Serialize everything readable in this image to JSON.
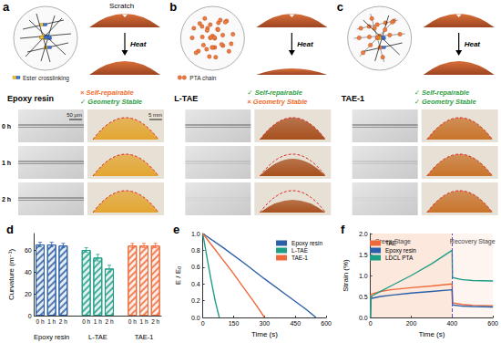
{
  "panels": [
    {
      "letter": "a",
      "name": "Epoxy resin",
      "scratch_label": "Scratch",
      "heat_label": "Heat",
      "key_label": "Ester crosslinking",
      "status": [
        {
          "text": "× Self-repairable",
          "ok": false
        },
        {
          "text": "✓ Geometry Stable",
          "ok": true
        }
      ],
      "times": [
        "0 h",
        "1 h",
        "2 h"
      ],
      "scale_bars": [
        "50 μm",
        "5 mm"
      ]
    },
    {
      "letter": "b",
      "name": "L-TAE",
      "heat_label": "Heat",
      "key_label": "PTA chain",
      "status": [
        {
          "text": "✓ Self-repairable",
          "ok": true
        },
        {
          "text": "× Geometry Stable",
          "ok": false
        }
      ]
    },
    {
      "letter": "c",
      "name": "TAE-1",
      "heat_label": "Heat",
      "status": [
        {
          "text": "✓ Self-repairable",
          "ok": true
        },
        {
          "text": "✓ Geometry Stable",
          "ok": true
        }
      ]
    }
  ],
  "chart_data": [
    {
      "panel": "d",
      "type": "bar",
      "ylabel": "Curvature (m⁻¹)",
      "categories": [
        "0 h",
        "1 h",
        "2 h"
      ],
      "series": [
        {
          "name": "Epoxy resin",
          "color": "#2b5fa8",
          "values": [
            65,
            65,
            64
          ],
          "errors": [
            2,
            2,
            2
          ]
        },
        {
          "name": "L-TAE",
          "color": "#1f9e86",
          "values": [
            60,
            53,
            43
          ],
          "errors": [
            2,
            3,
            3
          ]
        },
        {
          "name": "TAE-1",
          "color": "#ef6a3a",
          "values": [
            64,
            64,
            64
          ],
          "errors": [
            2,
            2,
            2
          ]
        }
      ],
      "ylim": [
        0,
        75
      ],
      "yticks": [
        0,
        20,
        40,
        60
      ]
    },
    {
      "panel": "e",
      "type": "line",
      "xlabel": "Time (s)",
      "ylabel": "E / E₀",
      "legend": "upper right",
      "xlim": [
        0,
        600
      ],
      "xticks": [
        0,
        150,
        300,
        450,
        600
      ],
      "ylim": [
        0,
        1
      ],
      "yticks": [
        {
          "value": 0,
          "label": "0.0"
        },
        0.2,
        0.4,
        0.6,
        0.8,
        {
          "value": 1,
          "label": "1.0"
        }
      ],
      "series": [
        {
          "name": "Epoxy resin",
          "color": "#2b5fa8",
          "x": [
            0,
            100,
            200,
            300,
            400,
            500,
            550
          ],
          "values": [
            1,
            0.83,
            0.65,
            0.46,
            0.28,
            0.1,
            0
          ]
        },
        {
          "name": "L-TAE",
          "color": "#1f9e86",
          "x": [
            0,
            20,
            40,
            60,
            80
          ],
          "values": [
            1,
            0.72,
            0.45,
            0.2,
            0
          ]
        },
        {
          "name": "TAE-1",
          "color": "#ef6a3a",
          "x": [
            0,
            50,
            100,
            150,
            200,
            250,
            300
          ],
          "values": [
            1,
            0.84,
            0.68,
            0.52,
            0.35,
            0.18,
            0
          ]
        }
      ]
    },
    {
      "panel": "f",
      "type": "line",
      "xlabel": "Time (s)",
      "ylabel": "Strain (%)",
      "legend": "upper left",
      "xlim": [
        0,
        600
      ],
      "xticks": [
        0,
        200,
        400,
        600
      ],
      "ylim": [
        0,
        2
      ],
      "yticks": [
        {
          "value": 0,
          "label": "0.0"
        },
        0.5,
        {
          "value": 1,
          "label": "1.0"
        },
        1.5,
        {
          "value": 2,
          "label": "2.0"
        }
      ],
      "stages": [
        {
          "name": "Creep Stage",
          "from": 0,
          "to": 400
        },
        {
          "name": "Recovery Stage",
          "from": 400,
          "to": 600
        }
      ],
      "series": [
        {
          "name": "TAE",
          "color": "#ef6a3a",
          "x": [
            0,
            2,
            50,
            100,
            200,
            300,
            400,
            402,
            450,
            500,
            600
          ],
          "values": [
            0,
            0.55,
            0.62,
            0.66,
            0.71,
            0.75,
            0.8,
            0.35,
            0.31,
            0.29,
            0.28
          ]
        },
        {
          "name": "Epoxy resin",
          "color": "#2b5fa8",
          "x": [
            0,
            2,
            50,
            100,
            200,
            300,
            400,
            402,
            450,
            500,
            600
          ],
          "values": [
            0,
            0.45,
            0.5,
            0.53,
            0.58,
            0.62,
            0.66,
            0.3,
            0.27,
            0.26,
            0.25
          ]
        },
        {
          "name": "LDCL PTA",
          "color": "#1f9e86",
          "x": [
            0,
            2,
            50,
            100,
            200,
            300,
            400,
            402,
            450,
            500,
            600
          ],
          "values": [
            0,
            0.5,
            0.62,
            0.75,
            1.0,
            1.28,
            1.6,
            0.95,
            0.9,
            0.88,
            0.87
          ]
        }
      ]
    }
  ]
}
